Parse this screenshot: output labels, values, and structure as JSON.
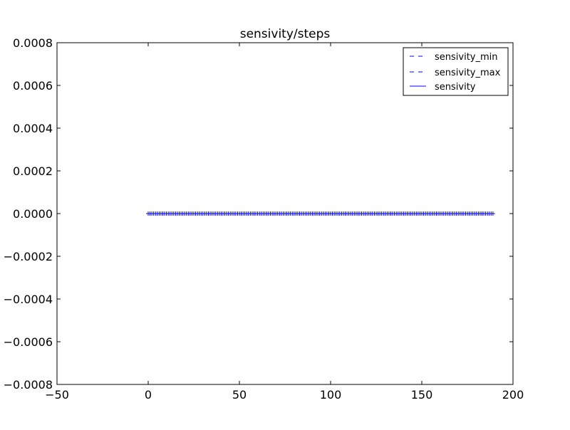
{
  "chart_data": {
    "type": "line",
    "title": "sensivity/steps",
    "xlabel": "",
    "ylabel": "",
    "xlim": [
      -50,
      200
    ],
    "ylim": [
      -0.0008,
      0.0008
    ],
    "x_ticks": [
      -50,
      0,
      50,
      100,
      150,
      200
    ],
    "x_tick_labels": [
      "−50",
      "0",
      "50",
      "100",
      "150",
      "200"
    ],
    "y_ticks": [
      0.0008,
      0.0006,
      0.0004,
      0.0002,
      0.0,
      -0.0002,
      -0.0004,
      -0.0006,
      -0.0008
    ],
    "y_tick_labels": [
      "0.0008",
      "0.0006",
      "0.0004",
      "0.0002",
      "0.0000",
      "−0.0002",
      "−0.0004",
      "−0.0006",
      "−0.0008"
    ],
    "grid": false,
    "legend_position": "top-right",
    "x_range": {
      "start": 0,
      "end": 189,
      "step": 1
    },
    "series": [
      {
        "name": "sensivity_min",
        "style": "dashed",
        "color": "#0000ff",
        "value": 0.0
      },
      {
        "name": "sensivity_max",
        "style": "dashed",
        "color": "#0000ff",
        "value": 0.0
      },
      {
        "name": "sensivity",
        "style": "solid",
        "color": "#0000ff",
        "value": 0.0,
        "marker": "+"
      }
    ]
  }
}
